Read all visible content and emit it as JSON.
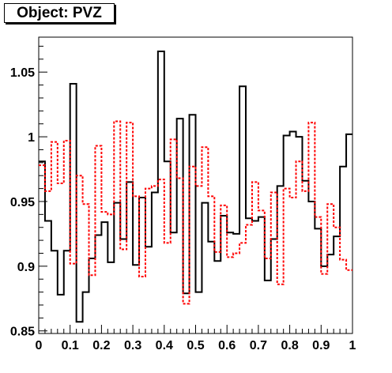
{
  "title": "Object: PVZ",
  "chart_data": {
    "type": "line",
    "title": "Object: PVZ",
    "xlabel": "",
    "ylabel": "",
    "xlim": [
      0,
      1
    ],
    "ylim": [
      0.848,
      1.077
    ],
    "grid": false,
    "x_ticks": [
      "0",
      "0.1",
      "0.2",
      "0.3",
      "0.4",
      "0.5",
      "0.6",
      "0.7",
      "0.8",
      "0.9",
      "1"
    ],
    "y_ticks": [
      "0.85",
      "0.9",
      "0.95",
      "1",
      "1.05"
    ],
    "bin_edges": [
      0,
      0.02,
      0.04,
      0.06,
      0.08,
      0.1,
      0.12,
      0.14,
      0.16,
      0.18,
      0.2,
      0.22,
      0.24,
      0.26,
      0.28,
      0.3,
      0.32,
      0.34,
      0.36,
      0.38,
      0.4,
      0.42,
      0.44,
      0.46,
      0.48,
      0.5,
      0.52,
      0.54,
      0.56,
      0.58,
      0.6,
      0.62,
      0.64,
      0.66,
      0.68,
      0.7,
      0.72,
      0.74,
      0.76,
      0.78,
      0.8,
      0.82,
      0.84,
      0.86,
      0.88,
      0.9,
      0.92,
      0.94,
      0.96,
      0.98,
      1
    ],
    "series": [
      {
        "style": "solid-black",
        "color": "#000000",
        "values": [
          0.981,
          0.935,
          0.912,
          0.878,
          0.912,
          1.041,
          0.857,
          0.88,
          0.906,
          0.924,
          0.934,
          0.903,
          0.949,
          0.921,
          0.965,
          0.901,
          0.953,
          0.915,
          0.957,
          1.066,
          0.981,
          0.926,
          1.014,
          0.879,
          1.017,
          0.88,
          0.949,
          0.919,
          0.904,
          0.939,
          0.926,
          0.925,
          1.039,
          0.937,
          0.935,
          0.938,
          0.889,
          0.921,
          0.962,
          1.001,
          1.004,
          1.0,
          0.966,
          0.95,
          0.929,
          0.9,
          0.909,
          0.923,
          0.977,
          1.002
        ]
      },
      {
        "style": "dashed-red",
        "color": "#ff0000",
        "values": [
          0.978,
          0.958,
          0.996,
          0.964,
          0.997,
          0.902,
          0.97,
          0.948,
          0.893,
          0.993,
          0.942,
          0.94,
          1.012,
          0.913,
          1.011,
          0.954,
          0.892,
          0.96,
          0.962,
          0.967,
          0.918,
          0.998,
          0.968,
          0.871,
          0.977,
          0.962,
          0.992,
          0.954,
          0.911,
          0.947,
          0.907,
          0.91,
          0.918,
          0.932,
          0.965,
          0.943,
          0.906,
          0.957,
          0.886,
          0.96,
          0.953,
          0.981,
          0.958,
          1.011,
          0.938,
          0.894,
          0.948,
          0.93,
          0.905,
          0.897
        ]
      }
    ]
  }
}
